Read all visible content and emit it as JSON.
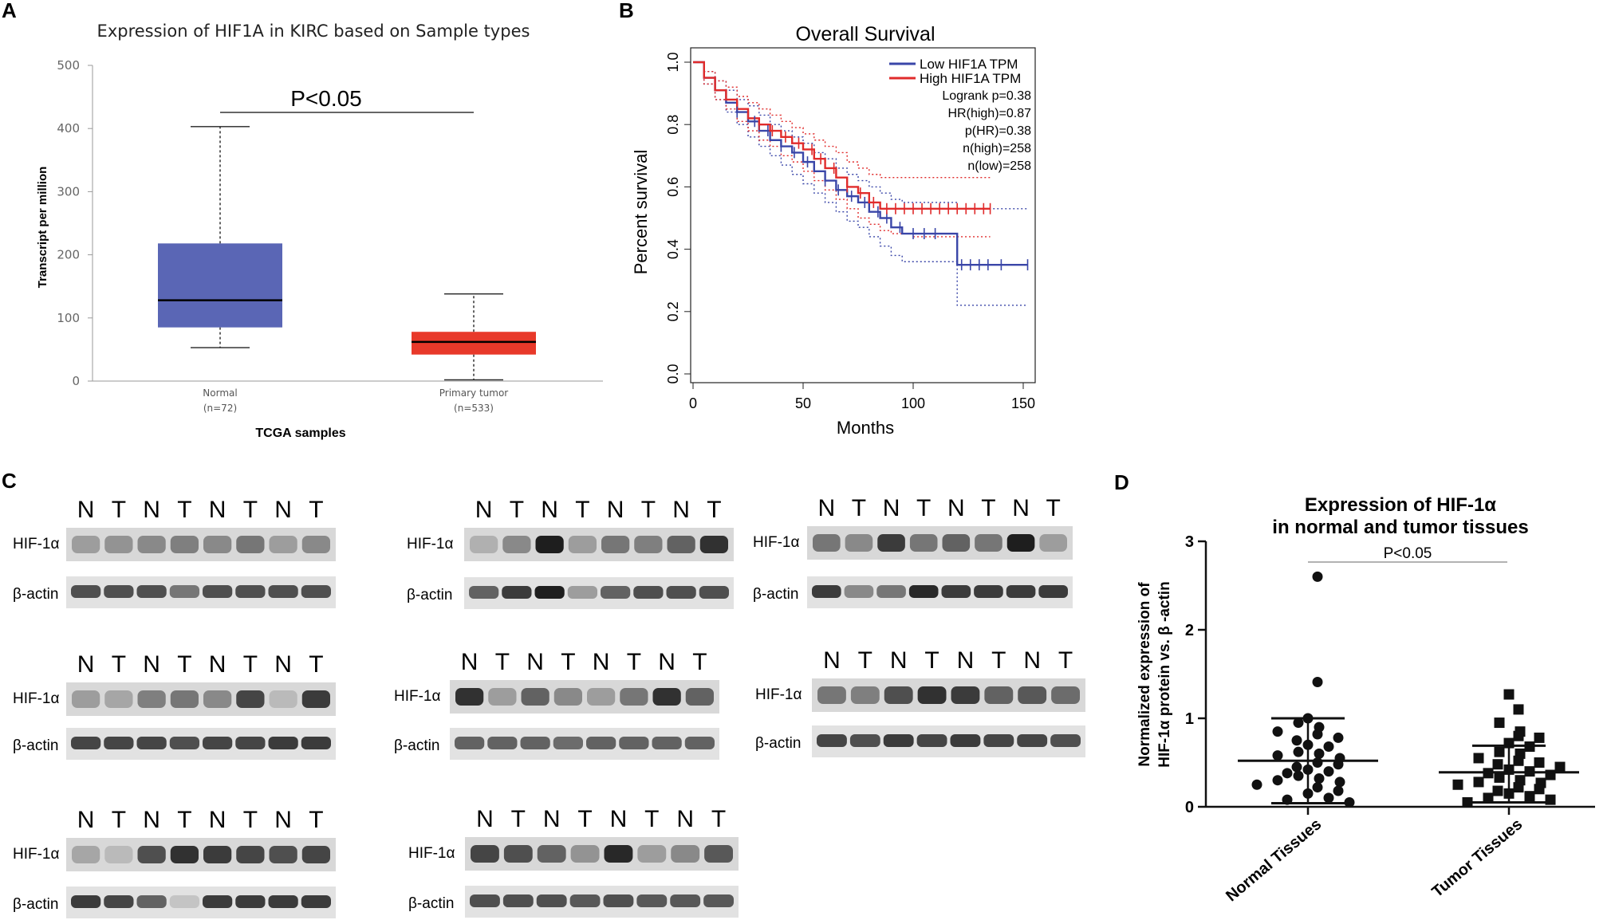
{
  "panels": {
    "A": {
      "letter": "A",
      "chart_data": {
        "type": "box",
        "title": "Expression of HIF1A in KIRC based on Sample types",
        "ylabel": "Transcript per million",
        "xlabel": "TCGA samples",
        "ylim": [
          0,
          500
        ],
        "yticks": [
          0,
          100,
          200,
          300,
          400,
          500
        ],
        "significance": "P<0.05",
        "significance_y": 425,
        "groups": [
          {
            "name": "Normal",
            "n_label": "(n=72)",
            "min": 53,
            "q1": 85,
            "median": 128,
            "q3": 218,
            "max": 403,
            "color": "#5a66b5"
          },
          {
            "name": "Primary tumor",
            "n_label": "(n=533)",
            "min": 2,
            "q1": 42,
            "median": 62,
            "q3": 78,
            "max": 138,
            "color": "#e8392a"
          }
        ]
      }
    },
    "B": {
      "letter": "B",
      "chart_data": {
        "type": "line",
        "title": "Overall Survival",
        "xlabel": "Months",
        "ylabel": "Percent survival",
        "xlim": [
          0,
          155
        ],
        "ylim": [
          0,
          1.05
        ],
        "xticks": [
          0,
          50,
          100,
          150
        ],
        "yticks": [
          "0.0",
          "0.2",
          "0.4",
          "0.6",
          "0.8",
          "1.0"
        ],
        "legend": [
          {
            "label": "Low HIF1A TPM",
            "color": "#3a46a8"
          },
          {
            "label": "High HIF1A TPM",
            "color": "#e02b2b"
          }
        ],
        "stats": [
          "Logrank p=0.38",
          "HR(high)=0.87",
          "p(HR)=0.38",
          "n(high)=258",
          "n(low)=258"
        ],
        "series": [
          {
            "name": "Low HIF1A TPM",
            "color": "#3a46a8",
            "x": [
              0,
              5,
              10,
              15,
              20,
              25,
              30,
              35,
              40,
              45,
              50,
              55,
              60,
              65,
              70,
              75,
              80,
              85,
              90,
              95,
              100,
              110,
              118,
              120,
              125,
              130,
              140,
              152
            ],
            "y": [
              1.0,
              0.95,
              0.91,
              0.87,
              0.84,
              0.81,
              0.78,
              0.75,
              0.73,
              0.71,
              0.68,
              0.65,
              0.62,
              0.59,
              0.57,
              0.55,
              0.52,
              0.5,
              0.47,
              0.45,
              0.45,
              0.45,
              0.45,
              0.35,
              0.35,
              0.35,
              0.35,
              0.35
            ],
            "ci_low": [
              1.0,
              0.93,
              0.88,
              0.84,
              0.8,
              0.76,
              0.73,
              0.7,
              0.67,
              0.64,
              0.61,
              0.58,
              0.55,
              0.52,
              0.49,
              0.47,
              0.44,
              0.41,
              0.38,
              0.36,
              0.36,
              0.36,
              0.36,
              0.22,
              0.22,
              0.22,
              0.22,
              0.22
            ],
            "ci_high": [
              1.0,
              0.97,
              0.94,
              0.91,
              0.88,
              0.86,
              0.83,
              0.8,
              0.78,
              0.76,
              0.74,
              0.71,
              0.69,
              0.66,
              0.64,
              0.62,
              0.6,
              0.58,
              0.56,
              0.55,
              0.55,
              0.55,
              0.55,
              0.53,
              0.53,
              0.53,
              0.53,
              0.53
            ]
          },
          {
            "name": "High HIF1A TPM",
            "color": "#e02b2b",
            "x": [
              0,
              5,
              10,
              15,
              20,
              25,
              30,
              35,
              40,
              45,
              50,
              55,
              60,
              65,
              70,
              75,
              80,
              85,
              90,
              95,
              100,
              110,
              120,
              125,
              130,
              135
            ],
            "y": [
              1.0,
              0.95,
              0.91,
              0.88,
              0.85,
              0.82,
              0.8,
              0.78,
              0.76,
              0.74,
              0.72,
              0.69,
              0.66,
              0.63,
              0.6,
              0.58,
              0.55,
              0.53,
              0.53,
              0.53,
              0.53,
              0.53,
              0.53,
              0.53,
              0.53,
              0.53
            ],
            "ci_low": [
              1.0,
              0.93,
              0.88,
              0.85,
              0.81,
              0.78,
              0.75,
              0.73,
              0.7,
              0.68,
              0.65,
              0.62,
              0.59,
              0.56,
              0.53,
              0.5,
              0.48,
              0.46,
              0.45,
              0.45,
              0.44,
              0.44,
              0.44,
              0.44,
              0.44,
              0.44
            ],
            "ci_high": [
              1.0,
              0.97,
              0.94,
              0.92,
              0.89,
              0.87,
              0.85,
              0.83,
              0.81,
              0.79,
              0.77,
              0.75,
              0.73,
              0.71,
              0.68,
              0.66,
              0.64,
              0.63,
              0.63,
              0.63,
              0.63,
              0.63,
              0.63,
              0.63,
              0.63,
              0.63
            ]
          }
        ],
        "censor_marks": {
          "Low HIF1A TPM": [
            20,
            28,
            34,
            40,
            46,
            52,
            60,
            66,
            72,
            78,
            84,
            88,
            94,
            100,
            105,
            110,
            122,
            126,
            130,
            134,
            140,
            152
          ],
          "High HIF1A TPM": [
            30,
            36,
            42,
            48,
            54,
            58,
            64,
            70,
            76,
            82,
            88,
            92,
            96,
            100,
            104,
            108,
            112,
            116,
            120,
            124,
            128,
            132,
            135
          ]
        }
      }
    },
    "C": {
      "letter": "C",
      "lanes": [
        "N",
        "T",
        "N",
        "T",
        "N",
        "T",
        "N",
        "T"
      ],
      "row_hif": "HIF-1α",
      "row_actin": "β-actin",
      "blots": [
        {
          "hif": [
            0.3,
            0.35,
            0.4,
            0.45,
            0.4,
            0.5,
            0.3,
            0.4
          ],
          "actin": [
            0.7,
            0.7,
            0.7,
            0.5,
            0.7,
            0.7,
            0.7,
            0.7
          ]
        },
        {
          "hif": [
            0.2,
            0.4,
            0.95,
            0.3,
            0.5,
            0.45,
            0.6,
            0.85
          ],
          "actin": [
            0.6,
            0.8,
            0.95,
            0.3,
            0.6,
            0.7,
            0.7,
            0.7
          ]
        },
        {
          "hif": [
            0.5,
            0.4,
            0.8,
            0.5,
            0.6,
            0.5,
            0.95,
            0.3
          ],
          "actin": [
            0.8,
            0.4,
            0.5,
            0.9,
            0.8,
            0.8,
            0.8,
            0.8
          ]
        },
        {
          "hif": [
            0.3,
            0.25,
            0.45,
            0.5,
            0.4,
            0.75,
            0.15,
            0.8
          ],
          "actin": [
            0.75,
            0.75,
            0.75,
            0.7,
            0.75,
            0.75,
            0.8,
            0.8
          ]
        },
        {
          "hif": [
            0.85,
            0.3,
            0.6,
            0.4,
            0.3,
            0.5,
            0.85,
            0.6
          ],
          "actin": [
            0.6,
            0.6,
            0.6,
            0.55,
            0.6,
            0.6,
            0.6,
            0.6
          ]
        },
        {
          "hif": [
            0.5,
            0.45,
            0.7,
            0.85,
            0.8,
            0.6,
            0.65,
            0.55
          ],
          "actin": [
            0.75,
            0.7,
            0.8,
            0.75,
            0.8,
            0.75,
            0.75,
            0.7
          ]
        },
        {
          "hif": [
            0.25,
            0.15,
            0.7,
            0.85,
            0.8,
            0.75,
            0.7,
            0.75
          ],
          "actin": [
            0.8,
            0.75,
            0.6,
            0.1,
            0.8,
            0.8,
            0.8,
            0.8
          ]
        },
        {
          "hif": [
            0.75,
            0.7,
            0.6,
            0.35,
            0.9,
            0.3,
            0.4,
            0.65
          ],
          "actin": [
            0.7,
            0.7,
            0.7,
            0.65,
            0.7,
            0.65,
            0.65,
            0.65
          ]
        }
      ]
    },
    "D": {
      "letter": "D",
      "chart_data": {
        "type": "scatter",
        "title_line1": "Expression of HIF-1α",
        "title_line2": "in normal and tumor tissues",
        "ylabel_line1": "Normalized expression of",
        "ylabel_line2": "HIF-1α  protein vs. β -actin",
        "ylim": [
          0,
          3
        ],
        "yticks": [
          0,
          1,
          2,
          3
        ],
        "significance": "P<0.05",
        "groups": [
          {
            "name": "Normal Tissues",
            "marker": "circle",
            "mean": 0.52,
            "sd_high": 1.0,
            "sd_low": 0.04,
            "values": [
              2.6,
              1.41,
              1.0,
              0.95,
              0.9,
              0.85,
              0.82,
              0.78,
              0.75,
              0.7,
              0.68,
              0.62,
              0.6,
              0.58,
              0.55,
              0.5,
              0.48,
              0.45,
              0.42,
              0.4,
              0.38,
              0.35,
              0.32,
              0.3,
              0.28,
              0.25,
              0.22,
              0.18,
              0.15,
              0.1,
              0.08,
              0.05
            ]
          },
          {
            "name": "Tumor Tissues",
            "marker": "square",
            "mean": 0.39,
            "sd_high": 0.69,
            "sd_low": 0.05,
            "values": [
              1.27,
              1.1,
              0.95,
              0.85,
              0.8,
              0.78,
              0.72,
              0.68,
              0.62,
              0.6,
              0.55,
              0.52,
              0.5,
              0.48,
              0.45,
              0.42,
              0.4,
              0.38,
              0.36,
              0.33,
              0.3,
              0.28,
              0.27,
              0.25,
              0.22,
              0.2,
              0.18,
              0.15,
              0.12,
              0.1,
              0.08,
              0.05
            ]
          }
        ]
      }
    }
  }
}
